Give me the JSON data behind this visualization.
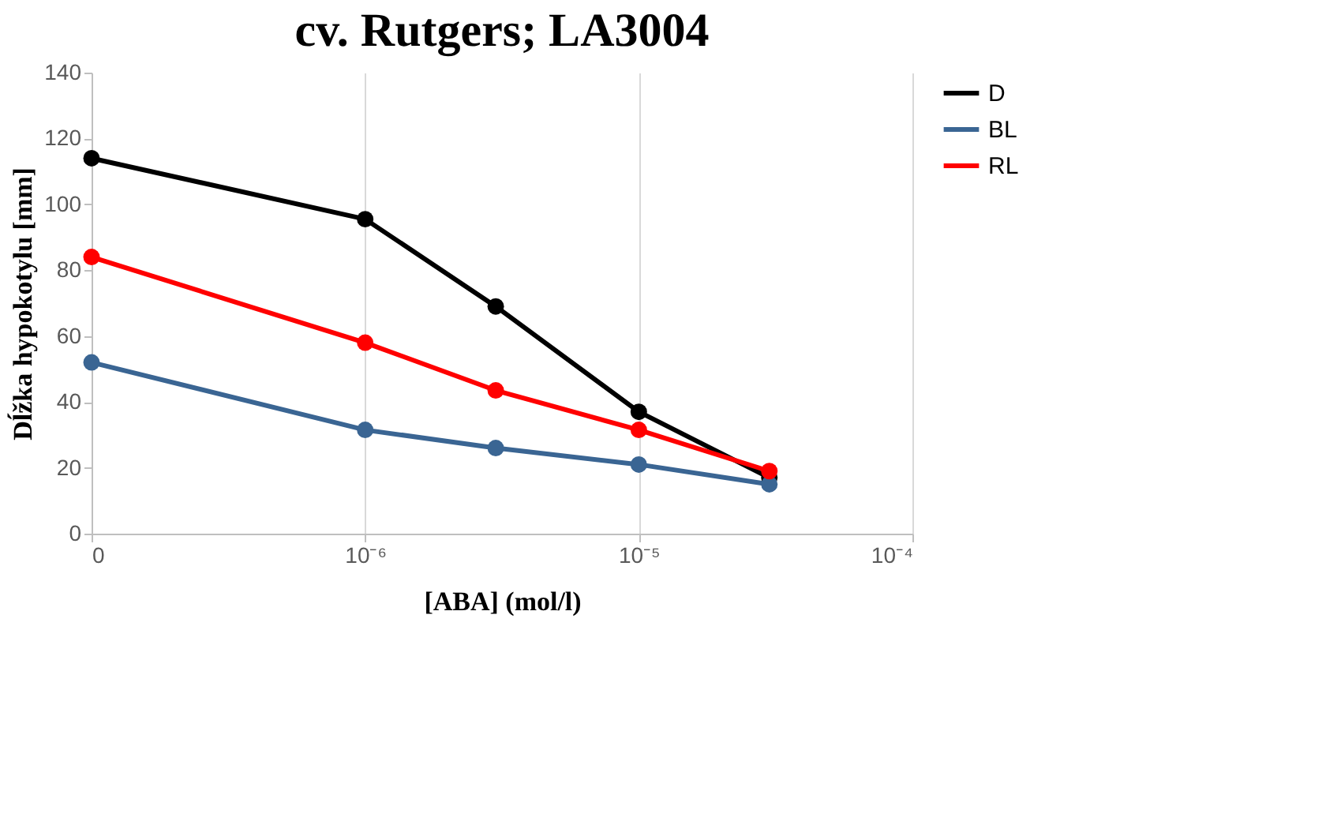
{
  "chart_data": {
    "type": "line",
    "title": "cv. Rutgers; LA3004",
    "xlabel": "[ABA] (mol/l)",
    "ylabel": "Dĺžka hypokotylu [mm]",
    "x": [
      1e-07,
      1e-06,
      3e-06,
      1e-05,
      3e-05
    ],
    "series": [
      {
        "name": "D",
        "color": "#000000",
        "values": [
          114,
          95.5,
          69,
          37,
          17
        ]
      },
      {
        "name": "BL",
        "color": "#3a6593",
        "values": [
          52,
          31.5,
          26,
          21,
          15
        ]
      },
      {
        "name": "RL",
        "color": "#ff0000",
        "values": [
          84,
          58,
          43.5,
          31.5,
          19
        ]
      }
    ],
    "log": "x",
    "xlim": [
      1e-07,
      0.0001
    ],
    "xticks": [
      {
        "value": 1e-07,
        "label": "0"
      },
      {
        "value": 1e-06,
        "label": "10⁻⁶"
      },
      {
        "value": 1e-05,
        "label": "10⁻⁵"
      },
      {
        "value": 0.0001,
        "label": "10⁻⁴"
      }
    ],
    "ylim": [
      0,
      140
    ],
    "yticks": [
      0,
      20,
      40,
      60,
      80,
      100,
      120,
      140
    ],
    "grid": "x",
    "legend": "right",
    "marker": "circle",
    "line_style": "solid"
  }
}
